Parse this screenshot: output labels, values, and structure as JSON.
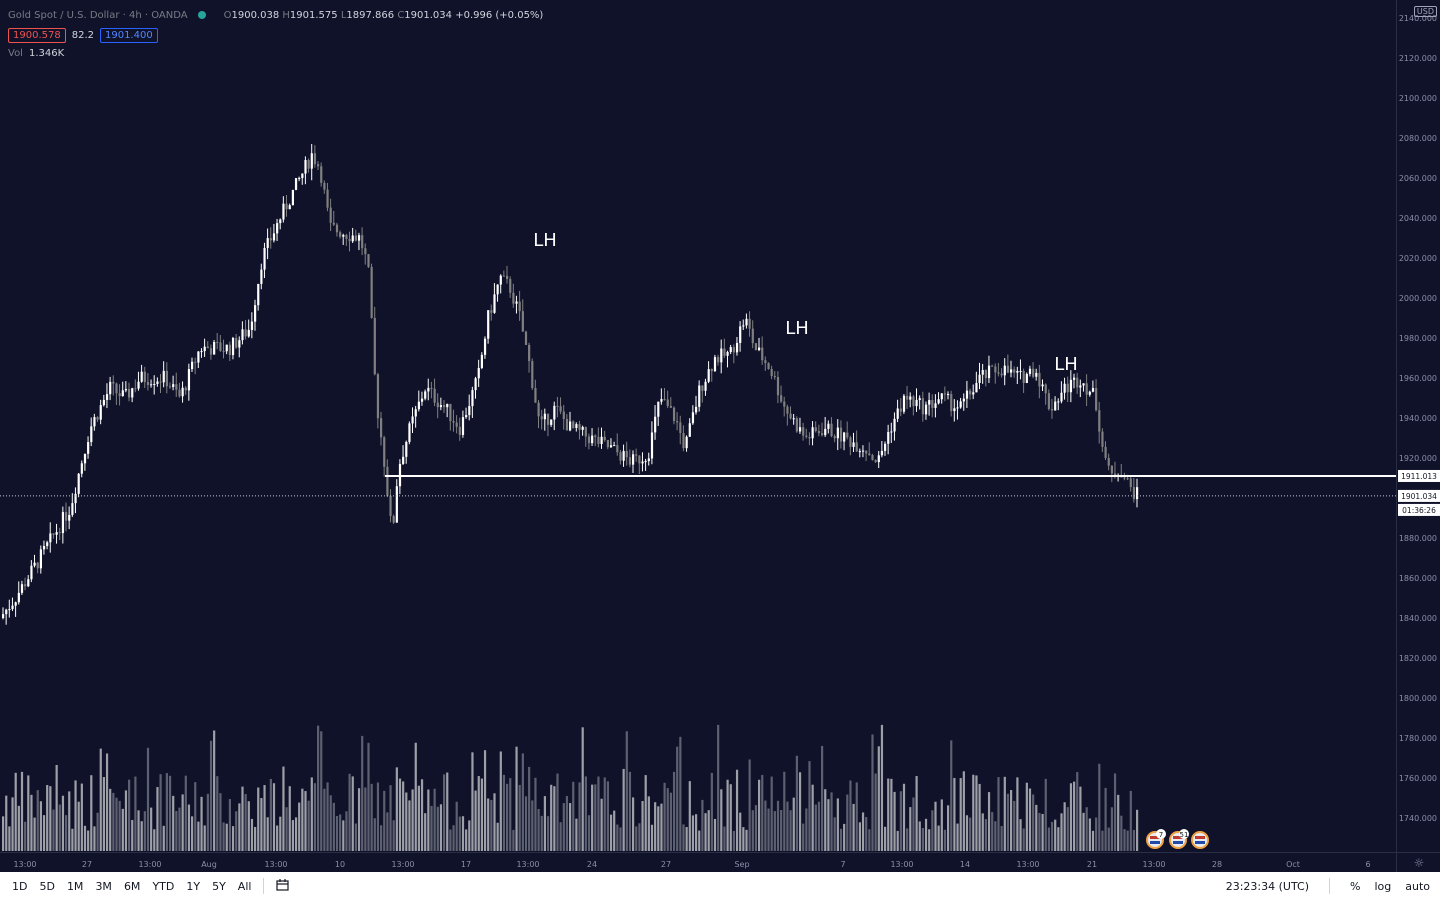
{
  "legend": {
    "symbol": "Gold Spot / U.S. Dollar · 4h · OANDA",
    "open_key": "O",
    "open": "1900.038",
    "high_key": "H",
    "high": "1901.575",
    "low_key": "L",
    "low": "1897.866",
    "close_key": "C",
    "close": "1901.034",
    "change": "+0.996 (+0.05%)",
    "bid": "1900.578",
    "spread": "82.2",
    "ask": "1901.400",
    "vol_label": "Vol",
    "vol_value": "1.346K"
  },
  "price_scale": {
    "currency": "USD",
    "ticks": [
      "2140.000",
      "2120.000",
      "2100.000",
      "2080.000",
      "2060.000",
      "2040.000",
      "2020.000",
      "2000.000",
      "1980.000",
      "1960.000",
      "1940.000",
      "1920.000",
      "1900.000",
      "1880.000",
      "1860.000",
      "1840.000",
      "1820.000",
      "1800.000",
      "1780.000",
      "1760.000",
      "1740.000"
    ],
    "level_label": "1911.013",
    "last_price_label": "1901.034",
    "countdown": "01:36:26"
  },
  "time_scale": {
    "labels": [
      "13:00",
      "27",
      "13:00",
      "Aug",
      "13:00",
      "10",
      "13:00",
      "17",
      "13:00",
      "24",
      "27",
      "Sep",
      "7",
      "13:00",
      "14",
      "13:00",
      "21",
      "13:00",
      "28",
      "Oct",
      "6"
    ]
  },
  "annotations": [
    "LH",
    "LH",
    "LH"
  ],
  "event_badges": [
    "7",
    "51",
    ""
  ],
  "bottom_bar": {
    "ranges": [
      "1D",
      "5D",
      "1M",
      "3M",
      "6M",
      "YTD",
      "1Y",
      "5Y",
      "All"
    ],
    "clock": "23:23:34 (UTC)",
    "percent": "%",
    "log": "log",
    "auto": "auto"
  },
  "colors": {
    "background": "#0f1229",
    "up": "#ffffff",
    "down": "#808080",
    "level_line": "#ffffff",
    "bid": "#ef5350",
    "ask": "#2962ff"
  },
  "chart_data": {
    "type": "candlestick",
    "title": "Gold Spot / U.S. Dollar · 4h · OANDA",
    "ylim": [
      1730,
      2145
    ],
    "price_axis_ticks": [
      2140,
      2120,
      2100,
      2080,
      2060,
      2040,
      2020,
      2000,
      1980,
      1960,
      1940,
      1920,
      1900,
      1880,
      1860,
      1840,
      1820,
      1800,
      1780,
      1760,
      1740
    ],
    "horizontal_level": 1911.013,
    "last_price": 1901.034,
    "annotation_labels": [
      {
        "text": "LH",
        "date": "Aug 19",
        "price": 2029
      },
      {
        "text": "LH",
        "date": "Sep 1",
        "price": 1985
      },
      {
        "text": "LH",
        "date": "Sep 17",
        "price": 1967
      }
    ],
    "path_points": [
      [
        0,
        1840
      ],
      [
        15,
        1850
      ],
      [
        40,
        1870
      ],
      [
        70,
        1895
      ],
      [
        90,
        1935
      ],
      [
        110,
        1955
      ],
      [
        125,
        1950
      ],
      [
        140,
        1960
      ],
      [
        165,
        1960
      ],
      [
        180,
        1950
      ],
      [
        200,
        1975
      ],
      [
        230,
        1975
      ],
      [
        250,
        1985
      ],
      [
        262,
        2020
      ],
      [
        280,
        2040
      ],
      [
        300,
        2060
      ],
      [
        312,
        2072
      ],
      [
        320,
        2065
      ],
      [
        330,
        2035
      ],
      [
        360,
        2030
      ],
      [
        368,
        2015
      ],
      [
        376,
        1950
      ],
      [
        385,
        1915
      ],
      [
        392,
        1880
      ],
      [
        398,
        1915
      ],
      [
        410,
        1935
      ],
      [
        425,
        1955
      ],
      [
        445,
        1945
      ],
      [
        460,
        1935
      ],
      [
        478,
        1960
      ],
      [
        488,
        1990
      ],
      [
        500,
        2010
      ],
      [
        510,
        2005
      ],
      [
        520,
        1990
      ],
      [
        530,
        1965
      ],
      [
        540,
        1935
      ],
      [
        555,
        1945
      ],
      [
        570,
        1935
      ],
      [
        590,
        1930
      ],
      [
        610,
        1925
      ],
      [
        632,
        1918
      ],
      [
        648,
        1922
      ],
      [
        660,
        1950
      ],
      [
        675,
        1940
      ],
      [
        685,
        1925
      ],
      [
        700,
        1955
      ],
      [
        715,
        1970
      ],
      [
        730,
        1972
      ],
      [
        745,
        1990
      ],
      [
        755,
        1975
      ],
      [
        770,
        1965
      ],
      [
        785,
        1945
      ],
      [
        805,
        1930
      ],
      [
        825,
        1935
      ],
      [
        845,
        1930
      ],
      [
        865,
        1925
      ],
      [
        878,
        1918
      ],
      [
        890,
        1935
      ],
      [
        905,
        1950
      ],
      [
        925,
        1945
      ],
      [
        940,
        1950
      ],
      [
        960,
        1945
      ],
      [
        980,
        1960
      ],
      [
        1000,
        1965
      ],
      [
        1020,
        1960
      ],
      [
        1035,
        1965
      ],
      [
        1050,
        1945
      ],
      [
        1065,
        1955
      ],
      [
        1080,
        1960
      ],
      [
        1095,
        1950
      ],
      [
        1103,
        1925
      ],
      [
        1110,
        1910
      ],
      [
        1120,
        1915
      ],
      [
        1130,
        1905
      ],
      [
        1138,
        1901
      ]
    ]
  }
}
